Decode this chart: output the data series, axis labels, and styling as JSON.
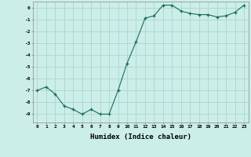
{
  "x": [
    0,
    1,
    2,
    3,
    4,
    5,
    6,
    7,
    8,
    9,
    10,
    11,
    12,
    13,
    14,
    15,
    16,
    17,
    18,
    19,
    20,
    21,
    22,
    23
  ],
  "y": [
    -7.0,
    -6.7,
    -7.3,
    -8.3,
    -8.6,
    -9.0,
    -8.6,
    -9.0,
    -9.0,
    -7.0,
    -4.7,
    -2.9,
    -0.9,
    -0.7,
    0.2,
    0.2,
    -0.3,
    -0.5,
    -0.6,
    -0.6,
    -0.8,
    -0.7,
    -0.4,
    0.2
  ],
  "line_color": "#1a6b5a",
  "marker": "+",
  "marker_color": "#1a6b5a",
  "bg_color": "#cceee8",
  "grid_color": "#b0d8d2",
  "xlabel": "Humidex (Indice chaleur)",
  "xlim": [
    -0.5,
    23.5
  ],
  "ylim": [
    -9.7,
    0.5
  ],
  "yticks": [
    0,
    -1,
    -2,
    -3,
    -4,
    -5,
    -6,
    -7,
    -8,
    -9
  ],
  "xticks": [
    0,
    1,
    2,
    3,
    4,
    5,
    6,
    7,
    8,
    9,
    10,
    11,
    12,
    13,
    14,
    15,
    16,
    17,
    18,
    19,
    20,
    21,
    22,
    23
  ],
  "tick_fontsize": 4.5,
  "label_fontsize": 6.5
}
